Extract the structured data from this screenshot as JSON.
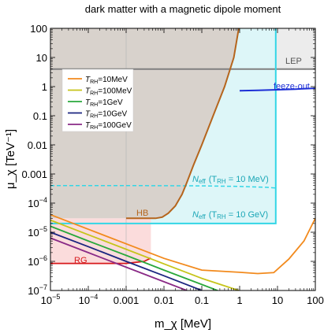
{
  "chart_data": {
    "type": "line",
    "title": "dark matter with a magnetic dipole moment",
    "xlabel": "m_χ [MeV]",
    "ylabel": "μ_χ [TeV⁻¹]",
    "xscale": "log",
    "yscale": "log",
    "xlim": [
      1e-05,
      100
    ],
    "ylim": [
      1e-07,
      100
    ],
    "x_ticks": [
      {
        "v": 1e-05,
        "m": "10",
        "e": "−5"
      },
      {
        "v": 0.0001,
        "m": "10",
        "e": "−4"
      },
      {
        "v": 0.001,
        "m": "0.001",
        "e": ""
      },
      {
        "v": 0.01,
        "m": "0.01",
        "e": ""
      },
      {
        "v": 0.1,
        "m": "0.1",
        "e": ""
      },
      {
        "v": 1,
        "m": "1",
        "e": ""
      },
      {
        "v": 10,
        "m": "10",
        "e": ""
      },
      {
        "v": 100,
        "m": "100",
        "e": ""
      }
    ],
    "y_ticks": [
      {
        "v": 1e-07,
        "m": "10",
        "e": "−7"
      },
      {
        "v": 1e-06,
        "m": "10",
        "e": "−6"
      },
      {
        "v": 1e-05,
        "m": "10",
        "e": "−5"
      },
      {
        "v": 0.0001,
        "m": "10",
        "e": "−4"
      },
      {
        "v": 0.001,
        "m": "0.001",
        "e": ""
      },
      {
        "v": 0.01,
        "m": "0.01",
        "e": ""
      },
      {
        "v": 0.1,
        "m": "0.1",
        "e": ""
      },
      {
        "v": 1,
        "m": "1",
        "e": ""
      },
      {
        "v": 10,
        "m": "10",
        "e": ""
      },
      {
        "v": 100,
        "m": "100",
        "e": ""
      }
    ],
    "series": [
      {
        "name": "T_RH=10MeV",
        "color": "#f28a1d",
        "points": [
          [
            1e-05,
            4e-05
          ],
          [
            0.0001,
            1.27e-05
          ],
          [
            0.001,
            4e-06
          ],
          [
            0.01,
            1.27e-06
          ],
          [
            0.1,
            5e-07
          ],
          [
            1,
            4.2e-07
          ],
          [
            3,
            3.8e-07
          ],
          [
            8,
            4.1e-07
          ],
          [
            20,
            1.2e-06
          ],
          [
            50,
            5e-06
          ],
          [
            100,
            3e-05
          ]
        ]
      },
      {
        "name": "T_RH=100MeV",
        "color": "#c6c41a",
        "points": [
          [
            1e-05,
            2.6e-05
          ],
          [
            0.0001,
            8.2e-06
          ],
          [
            0.001,
            2.6e-06
          ],
          [
            0.01,
            8.2e-07
          ],
          [
            0.1,
            2.6e-07
          ],
          [
            0.95,
            1e-07
          ]
        ]
      },
      {
        "name": "T_RH=1GeV",
        "color": "#2aa83c",
        "points": [
          [
            1e-05,
            1.6e-05
          ],
          [
            0.0001,
            5e-06
          ],
          [
            0.001,
            1.6e-06
          ],
          [
            0.01,
            5e-07
          ],
          [
            0.1,
            1.6e-07
          ],
          [
            0.26,
            1e-07
          ]
        ]
      },
      {
        "name": "T_RH=10GeV",
        "color": "#1b2580",
        "points": [
          [
            1e-05,
            1e-05
          ],
          [
            0.0001,
            3.2e-06
          ],
          [
            0.001,
            1e-06
          ],
          [
            0.01,
            3.2e-07
          ],
          [
            0.1,
            1e-07
          ]
        ]
      },
      {
        "name": "T_RH=100GeV",
        "color": "#8a2a86",
        "points": [
          [
            1e-05,
            6.3e-06
          ],
          [
            0.0001,
            2e-06
          ],
          [
            0.001,
            6.3e-07
          ],
          [
            0.01,
            2e-07
          ],
          [
            0.04,
            1e-07
          ]
        ]
      }
    ],
    "regions": [
      {
        "label": "LEP",
        "color": "#808080",
        "fill": "#ececec",
        "bound_y": 4
      },
      {
        "label": "HB",
        "color": "#b5651d",
        "fill": "#d8d2cc",
        "boundary": [
          [
            0.001,
            3e-05
          ],
          [
            0.006,
            3e-05
          ],
          [
            0.009,
            3.3e-05
          ],
          [
            0.013,
            4.5e-05
          ],
          [
            0.02,
            8e-05
          ],
          [
            0.03,
            0.0002
          ],
          [
            0.04,
            0.0005
          ],
          [
            0.06,
            0.002
          ],
          [
            0.1,
            0.01
          ],
          [
            0.2,
            0.1
          ],
          [
            0.4,
            1
          ],
          [
            0.7,
            10
          ],
          [
            0.95,
            100
          ]
        ]
      },
      {
        "label": "RG",
        "color": "#d7191c",
        "fill": "#fbdcdc",
        "boundary": [
          [
            1e-05,
            8.5e-07
          ],
          [
            0.0001,
            8.5e-07
          ],
          [
            0.001,
            8.5e-07
          ],
          [
            0.003,
            1e-06
          ],
          [
            0.0045,
            1.3e-06
          ],
          [
            0.0045,
            3e-05
          ],
          [
            0.001,
            3e-05
          ]
        ]
      },
      {
        "label": "N_eff (T_RH = 10 GeV)",
        "color": "#33d6e6",
        "fill": "#ddf6f8",
        "bound_y": 2e-05,
        "bound_x": 9
      }
    ],
    "extra_curves": [
      {
        "label": "N_eff (T_RH = 10 MeV)",
        "color": "#33d6e6",
        "style": "dashed",
        "points": [
          [
            1e-05,
            0.0004
          ],
          [
            0.001,
            0.0004
          ],
          [
            0.01,
            0.000395
          ],
          [
            0.1,
            0.00039
          ],
          [
            1,
            0.000375
          ],
          [
            5,
            0.00035
          ],
          [
            9,
            0.00033
          ]
        ]
      },
      {
        "label": "feeze-out",
        "color": "#1d2fd6",
        "points": [
          [
            1,
            0.72
          ],
          [
            3,
            0.74
          ],
          [
            10,
            0.78
          ],
          [
            30,
            0.82
          ],
          [
            100,
            0.88
          ]
        ]
      }
    ],
    "annotations": {
      "lep": "LEP",
      "freeze": "feeze-out",
      "hb": "HB",
      "rg": "RG",
      "neff_10mev_pre": "N",
      "neff_10mev_sub": "eff",
      "neff_10mev_post": "(T",
      "neff_10mev_sub2": "RH",
      "neff_10mev_post2": " = 10 MeV)",
      "neff_10gev_pre": "N",
      "neff_10gev_sub": "eff",
      "neff_10gev_post": "(T",
      "neff_10gev_sub2": "RH",
      "neff_10gev_post2": " = 10 GeV)"
    },
    "legend": {
      "placement": "top-left",
      "entries": [
        {
          "var": "T",
          "sub": "RH",
          "text": "=10MeV",
          "color": "#f28a1d"
        },
        {
          "var": "T",
          "sub": "RH",
          "text": "=100MeV",
          "color": "#c6c41a"
        },
        {
          "var": "T",
          "sub": "RH",
          "text": "=1GeV",
          "color": "#2aa83c"
        },
        {
          "var": "T",
          "sub": "RH",
          "text": "=10GeV",
          "color": "#1b2580"
        },
        {
          "var": "T",
          "sub": "RH",
          "text": "=100GeV",
          "color": "#8a2a86"
        }
      ]
    },
    "grid": false,
    "vline_x": 0.001
  }
}
